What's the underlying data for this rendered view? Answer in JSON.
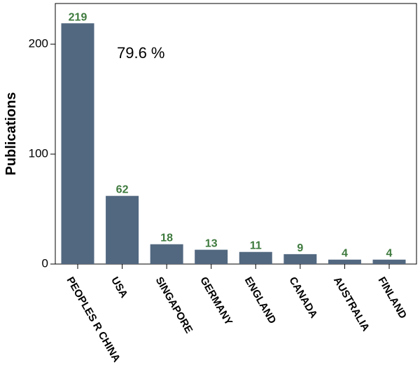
{
  "chart_data": {
    "type": "bar",
    "title": "",
    "xlabel": "",
    "ylabel": "Publications",
    "annotation": "79.6 %",
    "categories": [
      "PEOPLES R CHINA",
      "USA",
      "SINGAPORE",
      "GERMANY",
      "ENGLAND",
      "CANADA",
      "AUSTRALIA",
      "FINLAND"
    ],
    "values": [
      219,
      62,
      18,
      13,
      11,
      9,
      4,
      4
    ],
    "value_labels": [
      "219",
      "62",
      "18",
      "13",
      "11",
      "9",
      "4",
      "4"
    ],
    "yticks": [
      0,
      100,
      200
    ],
    "ytick_labels": [
      "0",
      "100",
      "200"
    ],
    "ylim": [
      0,
      237
    ],
    "grid": false,
    "legend": "none",
    "colors": {
      "bar": "#526880",
      "value_label": "#3e7a3e",
      "axis": "#000000"
    }
  }
}
